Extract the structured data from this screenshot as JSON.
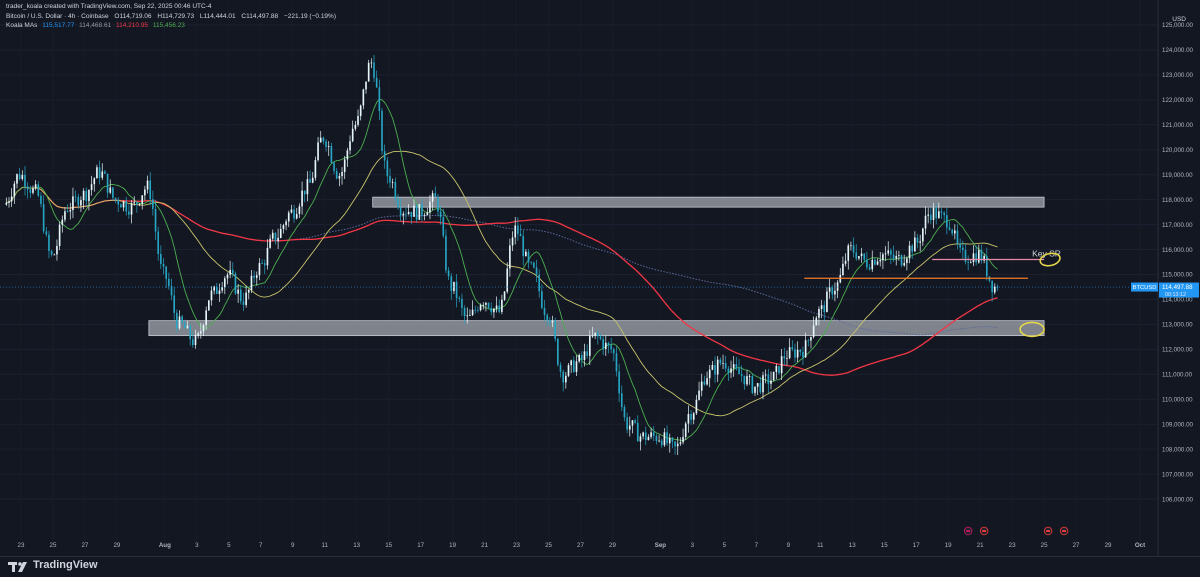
{
  "header": {
    "credit": "trader_koala created with TradingView.com, Sep 22, 2025 00:46 UTC-4",
    "symbol": "Bitcoin / U.S. Dollar · 4h · Coinbase",
    "open": "O114,719.06",
    "high": "H114,729.73",
    "low": "L114,444.01",
    "close": "C114,497.88",
    "change": "−221.19 (−0.19%)",
    "indicator_name": "Koala MAs",
    "ma_values": [
      "115,517.77",
      "114,468.61",
      "114,210.95",
      "115,456.23"
    ]
  },
  "currency": "USD",
  "footer": {
    "brand": "TradingView"
  },
  "colors": {
    "background": "#131722",
    "candle_up": "#e6f7fb",
    "candle_down": "#26a6c4",
    "ma_green": "#4caf50",
    "ma_yellow": "#c8c46b",
    "ma_red": "#f23645",
    "ma_blue_dotted": "#5b6b9c",
    "zone_fill": "#d8dce4",
    "orange_line": "#f07b2a",
    "pink_line": "#e88aa8",
    "circle": "#e4d64a",
    "price_tag": "#2196f3"
  },
  "chart_data": {
    "type": "candlestick",
    "title": "Bitcoin / U.S. Dollar · 4h · Coinbase",
    "x_range": [
      "2025-07-22",
      "2025-10-01"
    ],
    "ylim": [
      105500,
      126000
    ],
    "y_ticks": [
      "106,000.00",
      "107,000.00",
      "108,000.00",
      "109,000.00",
      "110,000.00",
      "111,000.00",
      "112,000.00",
      "113,000.00",
      "114,000.00",
      "115,000.00",
      "116,000.00",
      "117,000.00",
      "118,000.00",
      "119,000.00",
      "120,000.00",
      "121,000.00",
      "122,000.00",
      "123,000.00",
      "124,000.00",
      "125,000.00"
    ],
    "y_tick_values": [
      106000,
      107000,
      108000,
      109000,
      110000,
      111000,
      112000,
      113000,
      114000,
      115000,
      116000,
      117000,
      118000,
      119000,
      120000,
      121000,
      122000,
      123000,
      124000,
      125000
    ],
    "x_ticks": [
      {
        "label": "23",
        "date": "2025-07-23"
      },
      {
        "label": "25",
        "date": "2025-07-25"
      },
      {
        "label": "27",
        "date": "2025-07-27"
      },
      {
        "label": "29",
        "date": "2025-07-29"
      },
      {
        "label": "Aug",
        "date": "2025-08-01"
      },
      {
        "label": "3",
        "date": "2025-08-03"
      },
      {
        "label": "5",
        "date": "2025-08-05"
      },
      {
        "label": "7",
        "date": "2025-08-07"
      },
      {
        "label": "9",
        "date": "2025-08-09"
      },
      {
        "label": "11",
        "date": "2025-08-11"
      },
      {
        "label": "13",
        "date": "2025-08-13"
      },
      {
        "label": "15",
        "date": "2025-08-15"
      },
      {
        "label": "17",
        "date": "2025-08-17"
      },
      {
        "label": "19",
        "date": "2025-08-19"
      },
      {
        "label": "21",
        "date": "2025-08-21"
      },
      {
        "label": "23",
        "date": "2025-08-23"
      },
      {
        "label": "25",
        "date": "2025-08-25"
      },
      {
        "label": "27",
        "date": "2025-08-27"
      },
      {
        "label": "29",
        "date": "2025-08-29"
      },
      {
        "label": "Sep",
        "date": "2025-09-01"
      },
      {
        "label": "3",
        "date": "2025-09-03"
      },
      {
        "label": "5",
        "date": "2025-09-05"
      },
      {
        "label": "7",
        "date": "2025-09-07"
      },
      {
        "label": "9",
        "date": "2025-09-09"
      },
      {
        "label": "11",
        "date": "2025-09-11"
      },
      {
        "label": "13",
        "date": "2025-09-13"
      },
      {
        "label": "15",
        "date": "2025-09-15"
      },
      {
        "label": "17",
        "date": "2025-09-17"
      },
      {
        "label": "19",
        "date": "2025-09-19"
      },
      {
        "label": "21",
        "date": "2025-09-21"
      },
      {
        "label": "23",
        "date": "2025-09-23"
      },
      {
        "label": "25",
        "date": "2025-09-25"
      },
      {
        "label": "27",
        "date": "2025-09-27"
      },
      {
        "label": "29",
        "date": "2025-09-29"
      },
      {
        "label": "Oct",
        "date": "2025-10-01"
      }
    ],
    "price_path": [
      [
        "2025-07-22",
        117800
      ],
      [
        "2025-07-23",
        119000
      ],
      [
        "2025-07-24",
        118300
      ],
      [
        "2025-07-25",
        115700
      ],
      [
        "2025-07-26",
        117700
      ],
      [
        "2025-07-27",
        118200
      ],
      [
        "2025-07-28",
        119100
      ],
      [
        "2025-07-29",
        118000
      ],
      [
        "2025-07-30",
        117700
      ],
      [
        "2025-07-31",
        118500
      ],
      [
        "2025-08-01",
        115000
      ],
      [
        "2025-08-02",
        113000
      ],
      [
        "2025-08-03",
        112300
      ],
      [
        "2025-08-04",
        114200
      ],
      [
        "2025-08-05",
        115000
      ],
      [
        "2025-08-06",
        114000
      ],
      [
        "2025-08-07",
        115300
      ],
      [
        "2025-08-08",
        116500
      ],
      [
        "2025-08-09",
        117500
      ],
      [
        "2025-08-10",
        118500
      ],
      [
        "2025-08-11",
        120500
      ],
      [
        "2025-08-12",
        119000
      ],
      [
        "2025-08-13",
        121000
      ],
      [
        "2025-08-14",
        123500
      ],
      [
        "2025-08-15",
        119000
      ],
      [
        "2025-08-16",
        117600
      ],
      [
        "2025-08-17",
        117500
      ],
      [
        "2025-08-18",
        118000
      ],
      [
        "2025-08-19",
        114500
      ],
      [
        "2025-08-20",
        113200
      ],
      [
        "2025-08-21",
        114000
      ],
      [
        "2025-08-22",
        113500
      ],
      [
        "2025-08-23",
        116800
      ],
      [
        "2025-08-24",
        115200
      ],
      [
        "2025-08-25",
        113500
      ],
      [
        "2025-08-26",
        111000
      ],
      [
        "2025-08-27",
        111500
      ],
      [
        "2025-08-28",
        112500
      ],
      [
        "2025-08-29",
        112000
      ],
      [
        "2025-08-30",
        109000
      ],
      [
        "2025-08-31",
        108500
      ],
      [
        "2025-09-01",
        108500
      ],
      [
        "2025-09-02",
        108000
      ],
      [
        "2025-09-03",
        109500
      ],
      [
        "2025-09-04",
        111000
      ],
      [
        "2025-09-05",
        111500
      ],
      [
        "2025-09-06",
        111000
      ],
      [
        "2025-09-07",
        110500
      ],
      [
        "2025-09-08",
        110800
      ],
      [
        "2025-09-09",
        111800
      ],
      [
        "2025-09-10",
        112000
      ],
      [
        "2025-09-11",
        113500
      ],
      [
        "2025-09-12",
        114500
      ],
      [
        "2025-09-13",
        116000
      ],
      [
        "2025-09-14",
        115500
      ],
      [
        "2025-09-15",
        115800
      ],
      [
        "2025-09-16",
        115600
      ],
      [
        "2025-09-17",
        116200
      ],
      [
        "2025-09-18",
        117500
      ],
      [
        "2025-09-19",
        117200
      ],
      [
        "2025-09-20",
        115700
      ],
      [
        "2025-09-21",
        115800
      ],
      [
        "2025-09-22",
        114498
      ]
    ],
    "last_price": {
      "symbol": "BTCUSD",
      "price": "114,497.88",
      "sub": "00:13:12"
    },
    "zones": [
      {
        "from": "2025-08-14",
        "to": "2025-09-25",
        "low": 117700,
        "high": 118100
      },
      {
        "from": "2025-07-31",
        "to": "2025-09-25",
        "low": 112550,
        "high": 113150
      }
    ],
    "levels": [
      {
        "name": "Key SR",
        "price": 115600,
        "from": "2025-09-18",
        "to": "2025-09-25",
        "color": "pink"
      },
      {
        "price": 114850,
        "from": "2025-09-10",
        "to": "2025-09-24",
        "color": "orange"
      }
    ],
    "annotations": [
      {
        "text": "Key SR",
        "date": "2025-09-24",
        "price": 115800
      }
    ]
  }
}
